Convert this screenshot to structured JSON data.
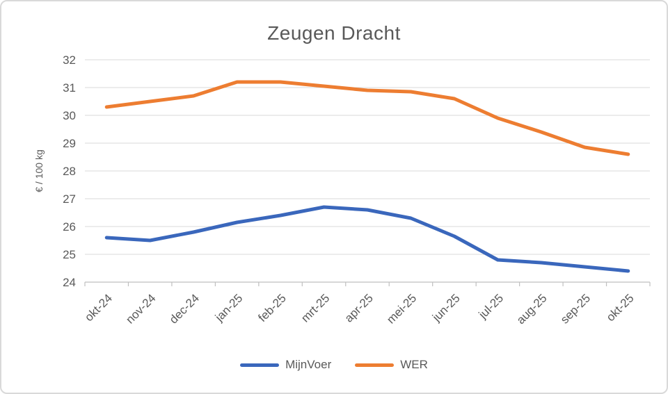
{
  "frame": {
    "background_color": "#FFFFFF",
    "border_color": "#D9D9D9"
  },
  "chart_data": {
    "type": "line",
    "title": "Zeugen Dracht",
    "xlabel": "",
    "ylabel": "€ / 100 kg",
    "categories": [
      "okt-24",
      "nov-24",
      "dec-24",
      "jan-25",
      "feb-25",
      "mrt-25",
      "apr-25",
      "mei-25",
      "jun-25",
      "jul-25",
      "aug-25",
      "sep-25",
      "okt-25"
    ],
    "series": [
      {
        "name": "MijnVoer",
        "color": "#3A67BC",
        "values": [
          25.6,
          25.5,
          25.8,
          26.15,
          26.4,
          26.7,
          26.6,
          26.3,
          25.65,
          24.8,
          24.7,
          24.55,
          24.4
        ]
      },
      {
        "name": "WER",
        "color": "#ED7D31",
        "values": [
          30.3,
          30.5,
          30.7,
          31.2,
          31.2,
          31.05,
          30.9,
          30.85,
          30.6,
          29.9,
          29.4,
          28.85,
          28.6
        ]
      }
    ],
    "ylim": [
      24,
      32
    ],
    "ytick_step": 1,
    "yticks": [
      "24",
      "25",
      "26",
      "27",
      "28",
      "29",
      "30",
      "31",
      "32"
    ],
    "grid": true,
    "gridline_color": "#D9D9D9",
    "axis_line_color": "#BFBFBF",
    "axis_text_color": "#595959",
    "legend_position": "bottom",
    "x_label_rotation_deg": 45
  }
}
